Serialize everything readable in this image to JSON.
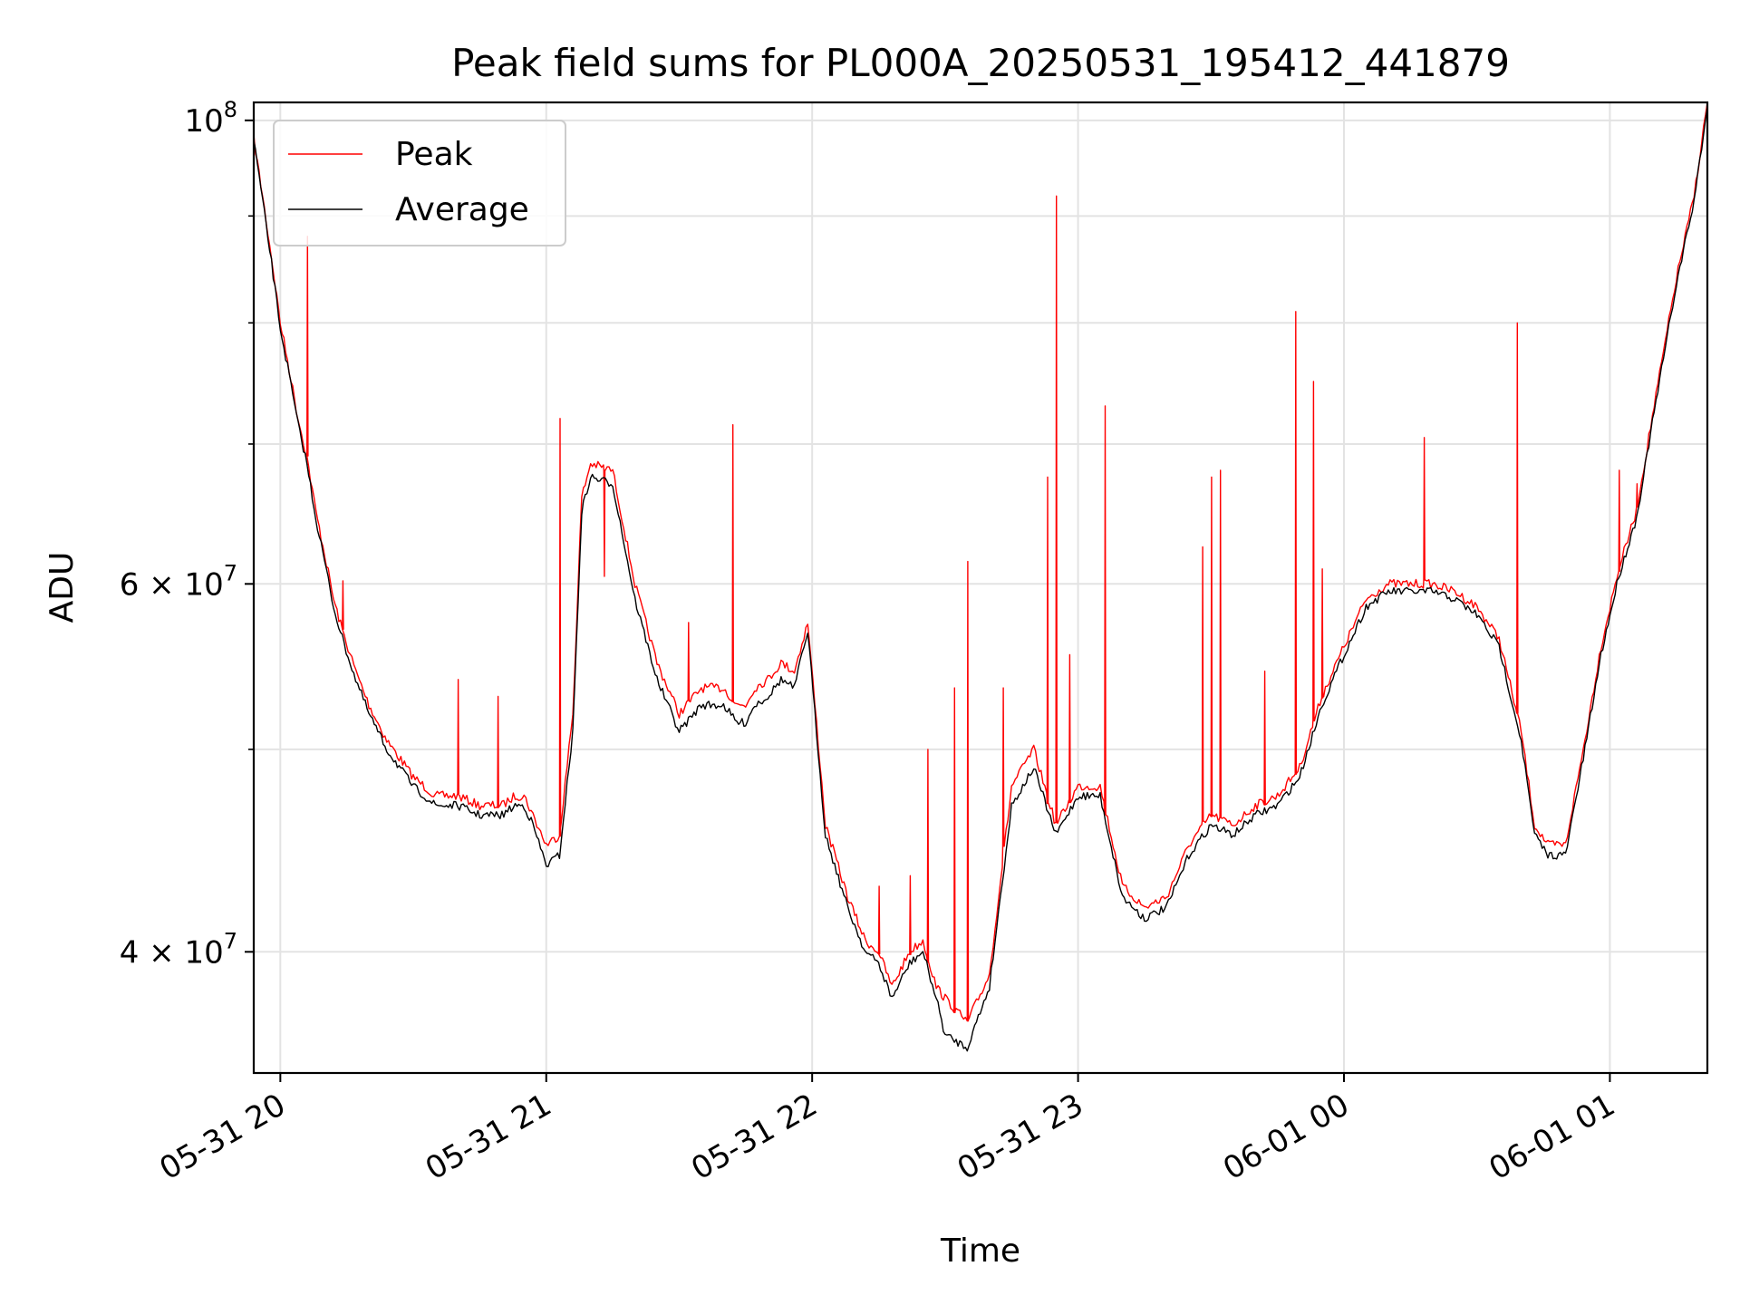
{
  "chart_data": {
    "type": "line",
    "title": "Peak field sums for PL000A_20250531_195412_441879",
    "xlabel": "Time",
    "ylabel": "ADU",
    "y_scale": "log",
    "ylim": [
      35000000,
      102000000
    ],
    "xlim": [
      "2025-05-31 19:54",
      "2025-06-01 01:22"
    ],
    "grid": true,
    "legend_position": "top-left",
    "x_ticks": [
      {
        "value": "2025-05-31 20:00",
        "label": "05-31 20"
      },
      {
        "value": "2025-05-31 21:00",
        "label": "05-31 21"
      },
      {
        "value": "2025-05-31 22:00",
        "label": "05-31 22"
      },
      {
        "value": "2025-05-31 23:00",
        "label": "05-31 23"
      },
      {
        "value": "2025-06-01 00:00",
        "label": "06-01 00"
      },
      {
        "value": "2025-06-01 01:00",
        "label": "06-01 01"
      }
    ],
    "y_ticks": [
      {
        "value": 40000000,
        "label": "4 × 10⁷",
        "base": "4 × 10",
        "exp": "7"
      },
      {
        "value": 60000000,
        "label": "6 × 10⁷",
        "base": "6 × 10",
        "exp": "7"
      },
      {
        "value": 100000000,
        "label": "10⁸",
        "base": "10",
        "exp": "8"
      }
    ],
    "series": [
      {
        "name": "Peak",
        "color": "#ff0000",
        "x": [
          "2025-05-31 19:54",
          "2025-05-31 19:56",
          "2025-05-31 19:58",
          "2025-05-31 20:00",
          "2025-05-31 20:02",
          "2025-05-31 20:04",
          "2025-05-31 20:06",
          "2025-05-31 20:08",
          "2025-05-31 20:10",
          "2025-05-31 20:12",
          "2025-05-31 20:14",
          "2025-05-31 20:17",
          "2025-05-31 20:20",
          "2025-05-31 20:24",
          "2025-05-31 20:30",
          "2025-05-31 20:35",
          "2025-05-31 20:40",
          "2025-05-31 20:45",
          "2025-05-31 20:50",
          "2025-05-31 20:53",
          "2025-05-31 20:55",
          "2025-05-31 20:57",
          "2025-05-31 21:00",
          "2025-05-31 21:03",
          "2025-05-31 21:06",
          "2025-05-31 21:08",
          "2025-05-31 21:10",
          "2025-05-31 21:15",
          "2025-05-31 21:20",
          "2025-05-31 21:25",
          "2025-05-31 21:30",
          "2025-05-31 21:35",
          "2025-05-31 21:40",
          "2025-05-31 21:43",
          "2025-05-31 21:45",
          "2025-05-31 21:47",
          "2025-05-31 21:50",
          "2025-05-31 21:53",
          "2025-05-31 21:56",
          "2025-05-31 21:59",
          "2025-05-31 22:03",
          "2025-05-31 22:08",
          "2025-05-31 22:12",
          "2025-05-31 22:15",
          "2025-05-31 22:18",
          "2025-05-31 22:22",
          "2025-05-31 22:25",
          "2025-05-31 22:28",
          "2025-05-31 22:30",
          "2025-05-31 22:35",
          "2025-05-31 22:40",
          "2025-05-31 22:45",
          "2025-05-31 22:50",
          "2025-05-31 22:55",
          "2025-05-31 23:00",
          "2025-05-31 23:05",
          "2025-05-31 23:10",
          "2025-05-31 23:15",
          "2025-05-31 23:20",
          "2025-05-31 23:25",
          "2025-05-31 23:30",
          "2025-05-31 23:35",
          "2025-05-31 23:40",
          "2025-05-31 23:45",
          "2025-05-31 23:50",
          "2025-05-31 23:55",
          "2025-06-01 00:00",
          "2025-06-01 00:05",
          "2025-06-01 00:10",
          "2025-06-01 00:15",
          "2025-06-01 00:20",
          "2025-06-01 00:25",
          "2025-06-01 00:30",
          "2025-06-01 00:35",
          "2025-06-01 00:40",
          "2025-06-01 00:43",
          "2025-06-01 00:46",
          "2025-06-01 00:50",
          "2025-06-01 00:54",
          "2025-06-01 00:58",
          "2025-06-01 01:02",
          "2025-06-01 01:06",
          "2025-06-01 01:10",
          "2025-06-01 01:15",
          "2025-06-01 01:19",
          "2025-06-01 01:22"
        ],
        "y": [
          98000000,
          92000000,
          86000000,
          80000000,
          76000000,
          72000000,
          69000000,
          65000000,
          62000000,
          59000000,
          57000000,
          54500000,
          52500000,
          50500000,
          48500000,
          47500000,
          47500000,
          47000000,
          47000000,
          47500000,
          47500000,
          46500000,
          45000000,
          45500000,
          52000000,
          66000000,
          68500000,
          68000000,
          60000000,
          55000000,
          52000000,
          53500000,
          53500000,
          52500000,
          52500000,
          53500000,
          54000000,
          55000000,
          54500000,
          57500000,
          46000000,
          42500000,
          40500000,
          40000000,
          38500000,
          40000000,
          40500000,
          38500000,
          38000000,
          37000000,
          39000000,
          48000000,
          50000000,
          46000000,
          48000000,
          48000000,
          43000000,
          42000000,
          42500000,
          45000000,
          46500000,
          46000000,
          47000000,
          47500000,
          49000000,
          53000000,
          56000000,
          59000000,
          60000000,
          60000000,
          60000000,
          59500000,
          58500000,
          56500000,
          51000000,
          46000000,
          45000000,
          45000000,
          50000000,
          56000000,
          61000000,
          65000000,
          73000000,
          84000000,
          92000000,
          102000000
        ],
        "spikes": [
          {
            "x": "2025-05-31 20:06",
            "y": 88000000
          },
          {
            "x": "2025-05-31 20:14",
            "y": 60200000
          },
          {
            "x": "2025-05-31 20:40",
            "y": 54000000
          },
          {
            "x": "2025-05-31 20:49",
            "y": 53000000
          },
          {
            "x": "2025-05-31 21:03",
            "y": 72000000
          },
          {
            "x": "2025-05-31 21:13",
            "y": 60500000
          },
          {
            "x": "2025-05-31 21:32",
            "y": 57500000
          },
          {
            "x": "2025-05-31 21:42",
            "y": 71500000
          },
          {
            "x": "2025-05-31 22:15",
            "y": 43000000
          },
          {
            "x": "2025-05-31 22:22",
            "y": 43500000
          },
          {
            "x": "2025-05-31 22:26",
            "y": 50000000
          },
          {
            "x": "2025-05-31 22:32",
            "y": 53500000
          },
          {
            "x": "2025-05-31 22:35",
            "y": 61500000
          },
          {
            "x": "2025-05-31 22:43",
            "y": 53500000
          },
          {
            "x": "2025-05-31 22:53",
            "y": 67500000
          },
          {
            "x": "2025-05-31 22:55",
            "y": 92000000
          },
          {
            "x": "2025-05-31 22:58",
            "y": 55500000
          },
          {
            "x": "2025-05-31 23:06",
            "y": 73000000
          },
          {
            "x": "2025-05-31 23:28",
            "y": 62500000
          },
          {
            "x": "2025-05-31 23:30",
            "y": 67500000
          },
          {
            "x": "2025-05-31 23:32",
            "y": 68000000
          },
          {
            "x": "2025-05-31 23:42",
            "y": 54500000
          },
          {
            "x": "2025-05-31 23:49",
            "y": 81000000
          },
          {
            "x": "2025-05-31 23:53",
            "y": 75000000
          },
          {
            "x": "2025-05-31 23:55",
            "y": 61000000
          },
          {
            "x": "2025-06-01 00:18",
            "y": 70500000
          },
          {
            "x": "2025-06-01 00:39",
            "y": 80000000
          },
          {
            "x": "2025-06-01 01:02",
            "y": 68000000
          },
          {
            "x": "2025-06-01 01:06",
            "y": 67000000
          }
        ]
      },
      {
        "name": "Average",
        "color": "#000000",
        "x": [
          "2025-05-31 19:54",
          "2025-05-31 19:56",
          "2025-05-31 19:58",
          "2025-05-31 20:00",
          "2025-05-31 20:02",
          "2025-05-31 20:04",
          "2025-05-31 20:06",
          "2025-05-31 20:08",
          "2025-05-31 20:10",
          "2025-05-31 20:12",
          "2025-05-31 20:14",
          "2025-05-31 20:17",
          "2025-05-31 20:20",
          "2025-05-31 20:24",
          "2025-05-31 20:30",
          "2025-05-31 20:35",
          "2025-05-31 20:40",
          "2025-05-31 20:45",
          "2025-05-31 20:50",
          "2025-05-31 20:53",
          "2025-05-31 20:55",
          "2025-05-31 20:57",
          "2025-05-31 21:00",
          "2025-05-31 21:03",
          "2025-05-31 21:06",
          "2025-05-31 21:08",
          "2025-05-31 21:10",
          "2025-05-31 21:15",
          "2025-05-31 21:20",
          "2025-05-31 21:25",
          "2025-05-31 21:30",
          "2025-05-31 21:35",
          "2025-05-31 21:40",
          "2025-05-31 21:43",
          "2025-05-31 21:45",
          "2025-05-31 21:47",
          "2025-05-31 21:50",
          "2025-05-31 21:53",
          "2025-05-31 21:56",
          "2025-05-31 21:59",
          "2025-05-31 22:03",
          "2025-05-31 22:08",
          "2025-05-31 22:12",
          "2025-05-31 22:15",
          "2025-05-31 22:18",
          "2025-05-31 22:22",
          "2025-05-31 22:25",
          "2025-05-31 22:28",
          "2025-05-31 22:30",
          "2025-05-31 22:35",
          "2025-05-31 22:40",
          "2025-05-31 22:45",
          "2025-05-31 22:50",
          "2025-05-31 22:55",
          "2025-05-31 23:00",
          "2025-05-31 23:05",
          "2025-05-31 23:10",
          "2025-05-31 23:15",
          "2025-05-31 23:20",
          "2025-05-31 23:25",
          "2025-05-31 23:30",
          "2025-05-31 23:35",
          "2025-05-31 23:40",
          "2025-05-31 23:45",
          "2025-05-31 23:50",
          "2025-05-31 23:55",
          "2025-06-01 00:00",
          "2025-06-01 00:05",
          "2025-06-01 00:10",
          "2025-06-01 00:15",
          "2025-06-01 00:20",
          "2025-06-01 00:25",
          "2025-06-01 00:30",
          "2025-06-01 00:35",
          "2025-06-01 00:40",
          "2025-06-01 00:43",
          "2025-06-01 00:46",
          "2025-06-01 00:50",
          "2025-06-01 00:54",
          "2025-06-01 00:58",
          "2025-06-01 01:02",
          "2025-06-01 01:06",
          "2025-06-01 01:10",
          "2025-06-01 01:15",
          "2025-06-01 01:19",
          "2025-06-01 01:22"
        ],
        "y": [
          98000000,
          91500000,
          85500000,
          79500000,
          75500000,
          71500000,
          68500000,
          64500000,
          61500000,
          58500000,
          56500000,
          54000000,
          52000000,
          50000000,
          48000000,
          47000000,
          47000000,
          46500000,
          46500000,
          47000000,
          47000000,
          46000000,
          44000000,
          44500000,
          51000000,
          65000000,
          67500000,
          67000000,
          59000000,
          54000000,
          51000000,
          52500000,
          52500000,
          51500000,
          51500000,
          52500000,
          53000000,
          54000000,
          53500000,
          57000000,
          45500000,
          42000000,
          40000000,
          39500000,
          38000000,
          39500000,
          40000000,
          38000000,
          36500000,
          36000000,
          38500000,
          47000000,
          49000000,
          45500000,
          47500000,
          47500000,
          42500000,
          41500000,
          42000000,
          44500000,
          46000000,
          45500000,
          46500000,
          47000000,
          48500000,
          52500000,
          55500000,
          58500000,
          59500000,
          59500000,
          59500000,
          59000000,
          58000000,
          56000000,
          50500000,
          45500000,
          44500000,
          44500000,
          49500000,
          55500000,
          60500000,
          64500000,
          72500000,
          83500000,
          91500000,
          101500000
        ]
      }
    ]
  }
}
